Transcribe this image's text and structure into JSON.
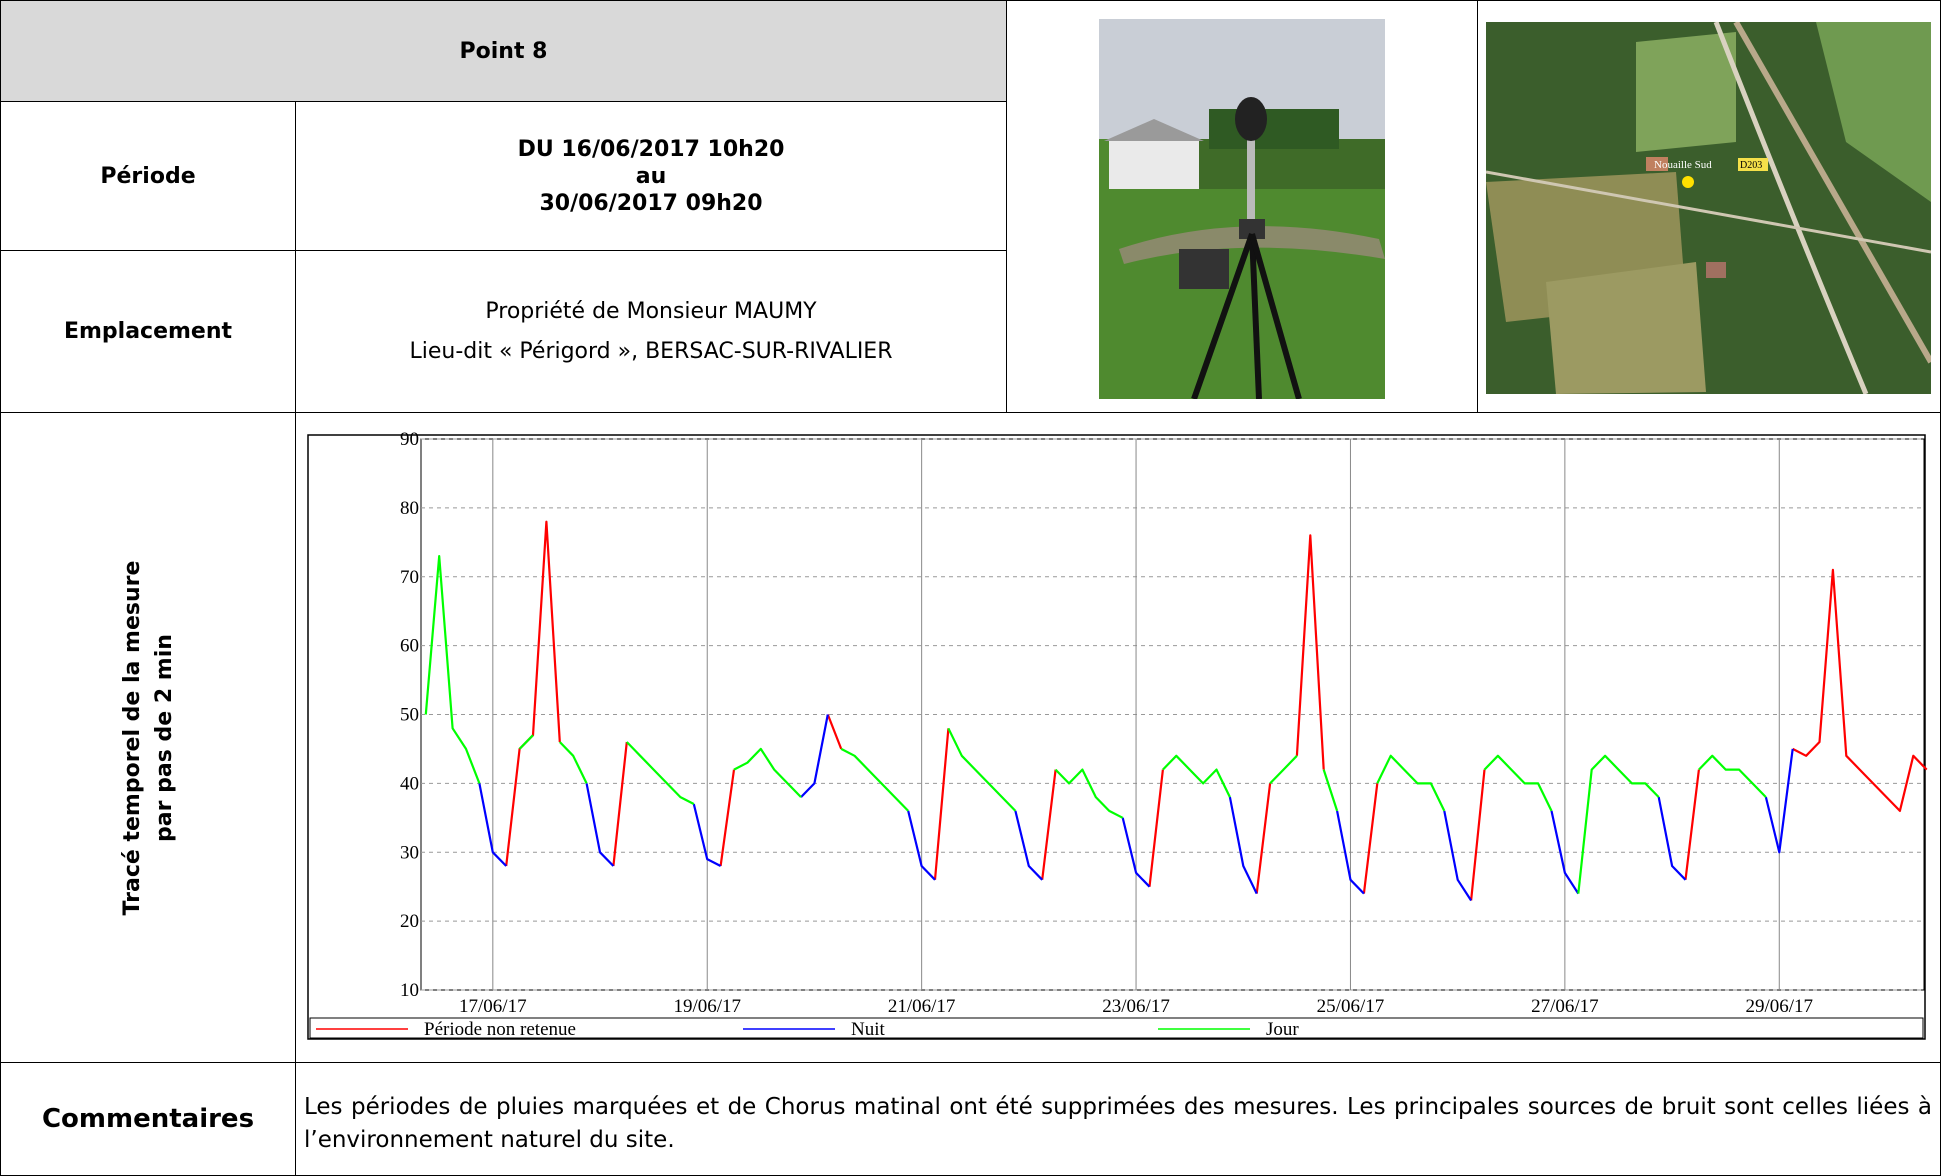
{
  "header": {
    "title": "Point 8"
  },
  "periode": {
    "label": "Période",
    "lines": [
      "DU 16/06/2017 10h20",
      "au",
      "30/06/2017 09h20"
    ]
  },
  "emplacement": {
    "label": "Emplacement",
    "lines": [
      "Propriété de Monsieur MAUMY",
      "Lieu-dit « Périgord », BERSAC-SUR-RIVALIER"
    ]
  },
  "map": {
    "labels": [
      "Nouaille Sud",
      "D203"
    ]
  },
  "trace": {
    "label_lines": [
      "Tracé temporel de la mesure",
      "par pas de 2 min"
    ]
  },
  "chart_data": {
    "type": "line",
    "x": [
      0.375,
      0.5,
      0.625,
      0.75,
      0.875,
      1,
      1.125,
      1.25,
      1.375,
      1.5,
      1.625,
      1.75,
      1.875,
      2,
      2.125,
      2.25,
      2.375,
      2.5,
      2.625,
      2.75,
      2.875,
      3,
      3.125,
      3.25,
      3.375,
      3.5,
      3.625,
      3.75,
      3.875,
      4,
      4.125,
      4.25,
      4.375,
      4.5,
      4.625,
      4.75,
      4.875,
      5,
      5.125,
      5.25,
      5.375,
      5.5,
      5.625,
      5.75,
      5.875,
      6,
      6.125,
      6.25,
      6.375,
      6.5,
      6.625,
      6.75,
      6.875,
      7,
      7.125,
      7.25,
      7.375,
      7.5,
      7.625,
      7.75,
      7.875,
      8,
      8.125,
      8.25,
      8.375,
      8.5,
      8.625,
      8.75,
      8.875,
      9,
      9.125,
      9.25,
      9.375,
      9.5,
      9.625,
      9.75,
      9.875,
      10,
      10.125,
      10.25,
      10.375,
      10.5,
      10.625,
      10.75,
      10.875,
      11,
      11.125,
      11.25,
      11.375,
      11.5,
      11.625,
      11.75,
      11.875,
      12,
      12.125,
      12.25,
      12.375,
      12.5,
      12.625,
      12.75,
      12.875,
      13,
      13.125,
      13.25,
      13.375,
      13.5,
      13.625,
      13.75,
      13.875,
      14,
      14.125,
      14.25,
      14.375
    ],
    "series": [
      {
        "name": "Période non retenue",
        "color": "#ff0000",
        "values": [
          null,
          null,
          null,
          null,
          null,
          null,
          28,
          45,
          47,
          78,
          46,
          null,
          null,
          null,
          28,
          46,
          null,
          null,
          null,
          null,
          null,
          null,
          28,
          42,
          null,
          null,
          null,
          null,
          null,
          null,
          50,
          45,
          null,
          null,
          null,
          null,
          null,
          null,
          26,
          48,
          null,
          null,
          null,
          null,
          null,
          null,
          26,
          42,
          null,
          null,
          null,
          null,
          null,
          null,
          25,
          42,
          null,
          null,
          null,
          null,
          null,
          null,
          24,
          40,
          null,
          44,
          76,
          42,
          null,
          null,
          24,
          40,
          null,
          null,
          null,
          null,
          null,
          null,
          23,
          42,
          null,
          null,
          null,
          null,
          null,
          null,
          null,
          null,
          null,
          null,
          null,
          null,
          null,
          null,
          26,
          42,
          null,
          null,
          null,
          null,
          null,
          null,
          45,
          44,
          46,
          71,
          44,
          42,
          40,
          38,
          36,
          44,
          42
        ]
      },
      {
        "name": "Nuit",
        "color": "#0000ff",
        "values": [
          null,
          null,
          null,
          null,
          40,
          30,
          28,
          null,
          null,
          null,
          null,
          null,
          40,
          30,
          28,
          null,
          null,
          null,
          null,
          null,
          37,
          29,
          28,
          null,
          null,
          null,
          null,
          null,
          38,
          40,
          50,
          null,
          null,
          null,
          null,
          null,
          36,
          28,
          26,
          null,
          null,
          null,
          null,
          null,
          36,
          28,
          26,
          null,
          null,
          null,
          null,
          null,
          35,
          27,
          25,
          null,
          null,
          null,
          null,
          null,
          38,
          28,
          24,
          null,
          null,
          null,
          null,
          null,
          36,
          26,
          24,
          null,
          null,
          null,
          null,
          null,
          36,
          26,
          23,
          null,
          null,
          null,
          null,
          null,
          36,
          27,
          24,
          null,
          null,
          null,
          null,
          null,
          38,
          28,
          26,
          null,
          null,
          null,
          null,
          null,
          38,
          30,
          45,
          null,
          null,
          null,
          null,
          null,
          null,
          null,
          null,
          null,
          null
        ]
      },
      {
        "name": "Jour",
        "color": "#00ff00",
        "values": [
          50,
          73,
          48,
          45,
          40,
          null,
          null,
          45,
          47,
          null,
          46,
          44,
          40,
          null,
          null,
          46,
          44,
          42,
          40,
          38,
          37,
          null,
          null,
          42,
          43,
          45,
          42,
          40,
          38,
          null,
          null,
          45,
          44,
          42,
          40,
          38,
          36,
          null,
          null,
          48,
          44,
          42,
          40,
          38,
          36,
          null,
          null,
          42,
          40,
          42,
          38,
          36,
          35,
          null,
          null,
          42,
          44,
          42,
          40,
          42,
          38,
          null,
          null,
          40,
          42,
          44,
          null,
          42,
          36,
          null,
          null,
          40,
          44,
          42,
          40,
          40,
          36,
          null,
          null,
          42,
          44,
          42,
          40,
          40,
          36,
          null,
          24,
          42,
          44,
          42,
          40,
          40,
          38,
          null,
          null,
          42,
          44,
          42,
          42,
          40,
          38,
          null,
          null,
          null,
          null,
          null,
          null,
          null,
          null,
          null,
          null,
          null,
          null
        ]
      }
    ],
    "xlim": [
      0.33,
      14.35
    ],
    "xticks": [
      {
        "value": 1,
        "label": "17/06/17"
      },
      {
        "value": 3,
        "label": "19/06/17"
      },
      {
        "value": 5,
        "label": "21/06/17"
      },
      {
        "value": 7,
        "label": "23/06/17"
      },
      {
        "value": 9,
        "label": "25/06/17"
      },
      {
        "value": 11,
        "label": "27/06/17"
      },
      {
        "value": 13,
        "label": "29/06/17"
      }
    ],
    "ylim": [
      10,
      90
    ],
    "yticks": [
      10,
      20,
      30,
      40,
      50,
      60,
      70,
      80,
      90
    ],
    "grid": true
  },
  "commentaires": {
    "label": "Commentaires",
    "text": "Les périodes de pluies marquées et de Chorus matinal ont été supprimées des mesures. Les principales sources de bruit sont celles liées à l’environnement naturel du site."
  }
}
